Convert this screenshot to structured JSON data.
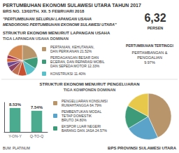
{
  "chart_data": [
    {
      "type": "pie",
      "title": "STRUKTUR EKONOMI MENURUT LAPANGAN USAHA",
      "subtitle": "TIGA LAPANGAN USAHA DOMINAN",
      "categories": [
        "PERTANIAN, KEHUTANAN,\nDAN PERIKANAN 21.52%",
        "PERDAGANGAN BESAR DAN\nECERAN, DAN REPARASI MOBIL\nDAN SEPEDA MOTOR 12.33%",
        "KONSTRUKSI 11.40%",
        null,
        null,
        null,
        null,
        null,
        null,
        null
      ],
      "values": [
        21.52,
        12.33,
        11.4,
        9.0,
        7.5,
        6.0,
        5.0,
        4.0,
        3.5,
        19.25
      ],
      "colors": [
        "#b8956a",
        "#3d9b7a",
        "#5bc0c8",
        "#c85030",
        "#c07050",
        "#8b4060",
        "#704890",
        "#d46030",
        "#a03050",
        "#d4874e"
      ],
      "legend": "left",
      "annotations": [
        "PERTUMBUHAN EKONOMI SULAWESI UTARA TAHUN 2017",
        "BRS NO. 13/02/TH. XII. 5 FEBRUARI 2018",
        "\"PERTUMBUHAN SELURUH LAPANGAN USAHA",
        "MENDORONG PERTUMBUHAN EKONOMI SULAWESI UTARA\"",
        "6,32",
        "PERSEN",
        "PERTUMBUHAN TERTINGGI",
        "PERTAMBANGAN &\nPENGGALIAN\n9.97%",
        "BPS PROVINSI SULAWESI UTARA",
        "BUM: PLATINUM"
      ]
    },
    {
      "type": "pie",
      "title": "STRUKTUR EKONOMI MENURUT PENGELUARAN",
      "subtitle": "TIGA KOMPONEN DOMINAN",
      "categories": [
        "PENGELUARAN KONSUMSI\nRUMAHTANGGA 64.79%",
        "PEMBENTUKAN MODAL\nTETAP DOMESTIK\nBRUTO 34.80%",
        "EKSPOR LUAR NEGERI\nBARANG DAN JASA 24.57%",
        null
      ],
      "values": [
        64.79,
        34.8,
        24.57,
        25.84
      ],
      "colors": [
        "#b8956a",
        "#5ba3c9",
        "#3d9b7a",
        "#e8c84a"
      ],
      "legend": "left"
    },
    {
      "type": "bar",
      "categories": [
        "Y-ON-Y",
        "Q-TO-Q"
      ],
      "values": [
        8.53,
        7.54
      ],
      "value_labels": [
        "8.53%",
        "7.54%"
      ],
      "data_labels": true,
      "color": "#4aab8e",
      "ylim": [
        0,
        10.5
      ],
      "grid": false,
      "tick_labels": "x"
    }
  ]
}
